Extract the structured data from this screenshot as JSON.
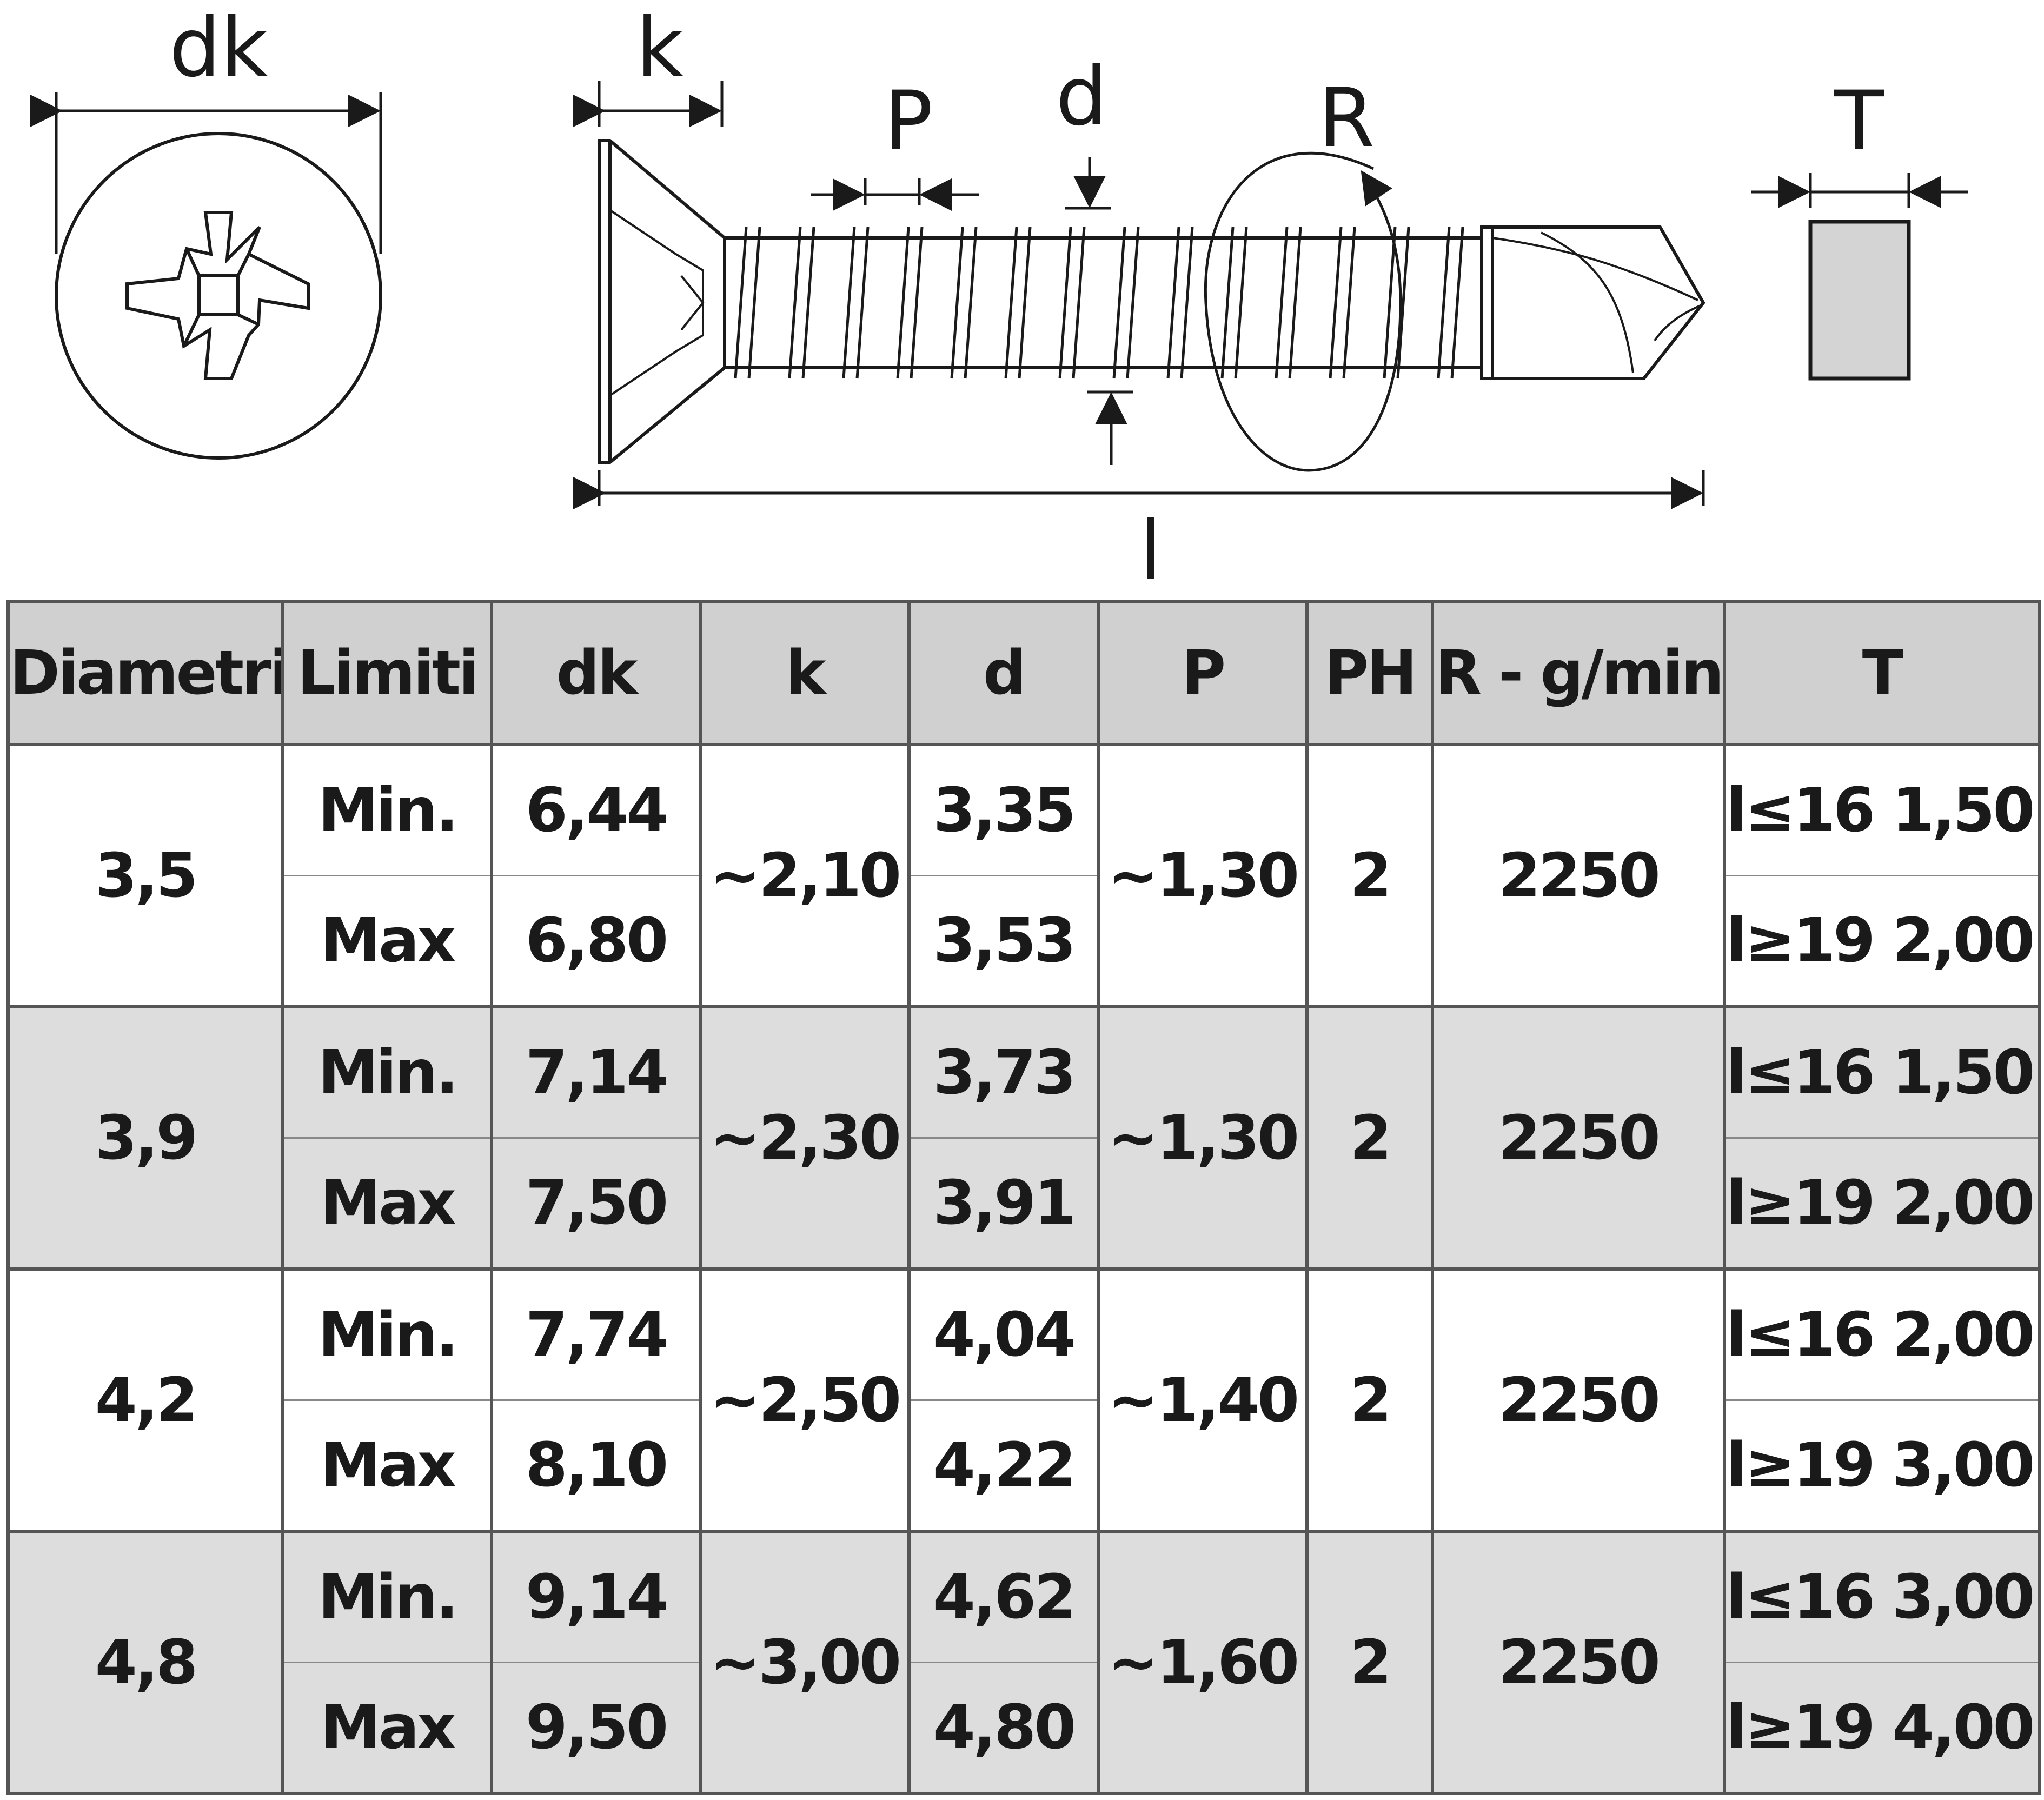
{
  "labels": {
    "dk": "dk",
    "k": "k",
    "P": "P",
    "d": "d",
    "R": "R",
    "T": "T",
    "l": "l"
  },
  "table": {
    "headers": [
      "Diametri",
      "Limiti",
      "dk",
      "k",
      "d",
      "P",
      "PH",
      "R - g/min",
      "T"
    ],
    "groups": [
      {
        "diametri": "3,5",
        "k": "~2,10",
        "P": "~1,30",
        "PH": "2",
        "R": "2250",
        "rows": [
          {
            "limiti": "Min.",
            "dk": "6,44",
            "d": "3,35",
            "T": "l≤16 1,50"
          },
          {
            "limiti": "Max",
            "dk": "6,80",
            "d": "3,53",
            "T": "l≥19 2,00"
          }
        ]
      },
      {
        "diametri": "3,9",
        "k": "~2,30",
        "P": "~1,30",
        "PH": "2",
        "R": "2250",
        "rows": [
          {
            "limiti": "Min.",
            "dk": "7,14",
            "d": "3,73",
            "T": "l≤16 1,50"
          },
          {
            "limiti": "Max",
            "dk": "7,50",
            "d": "3,91",
            "T": "l≥19 2,00"
          }
        ]
      },
      {
        "diametri": "4,2",
        "k": "~2,50",
        "P": "~1,40",
        "PH": "2",
        "R": "2250",
        "rows": [
          {
            "limiti": "Min.",
            "dk": "7,74",
            "d": "4,04",
            "T": "l≤16 2,00"
          },
          {
            "limiti": "Max",
            "dk": "8,10",
            "d": "4,22",
            "T": "l≥19 3,00"
          }
        ]
      },
      {
        "diametri": "4,8",
        "k": "~3,00",
        "P": "~1,60",
        "PH": "2",
        "R": "2250",
        "rows": [
          {
            "limiti": "Min.",
            "dk": "9,14",
            "d": "4,62",
            "T": "l≤16 3,00"
          },
          {
            "limiti": "Max",
            "dk": "9,50",
            "d": "4,80",
            "T": "l≥19 4,00"
          }
        ]
      }
    ]
  }
}
